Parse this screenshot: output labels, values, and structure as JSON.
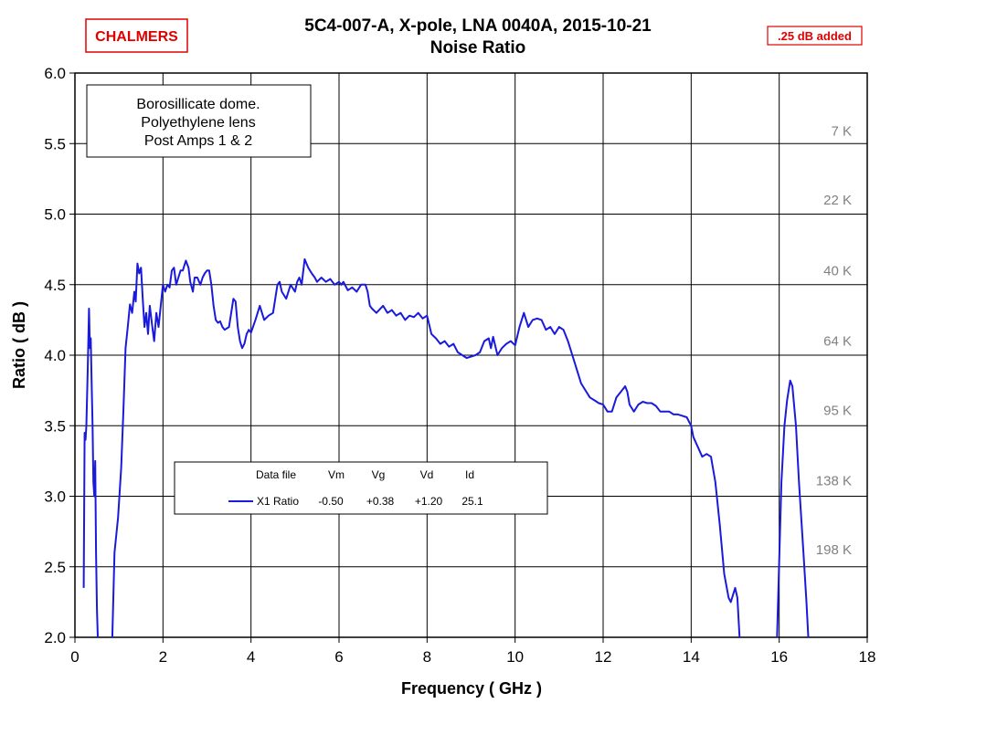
{
  "header": {
    "logo": "CHALMERS",
    "note": ".25 dB added"
  },
  "chart_data": {
    "type": "line",
    "title": "5C4-007-A,  X-pole,  LNA 0040A,  2015-10-21",
    "subtitle": "Noise Ratio",
    "xlabel": "Frequency ( GHz )",
    "ylabel": "Ratio  ( dB )",
    "xlim": [
      0,
      18
    ],
    "ylim": [
      2.0,
      6.0
    ],
    "x_ticks": [
      "0",
      "2",
      "4",
      "6",
      "8",
      "10",
      "12",
      "14",
      "16",
      "18"
    ],
    "y_ticks": [
      "2.0",
      "2.5",
      "3.0",
      "3.5",
      "4.0",
      "4.5",
      "5.0",
      "5.5",
      "6.0"
    ],
    "grid": true,
    "line_color": "#1a1adc",
    "annotation": [
      "Borosillicate dome.",
      "Polyethylene lens",
      "Post Amps 1 & 2"
    ],
    "temperature_labels": [
      {
        "label": "7 K",
        "y": 5.59
      },
      {
        "label": "22 K",
        "y": 5.1
      },
      {
        "label": "40 K",
        "y": 4.6
      },
      {
        "label": "64 K",
        "y": 4.1
      },
      {
        "label": "95 K",
        "y": 3.61
      },
      {
        "label": "138 K",
        "y": 3.11
      },
      {
        "label": "198 K",
        "y": 2.62
      }
    ],
    "legend": {
      "headers": [
        "Data file",
        "Vm",
        "Vg",
        "Vd",
        "Id"
      ],
      "row": [
        "X1 Ratio",
        "-0.50",
        "+0.38",
        "+1.20",
        "25.1"
      ]
    },
    "series": [
      {
        "name": "X1 Ratio",
        "segments": [
          [
            [
              0.2,
              2.35
            ],
            [
              0.22,
              3.45
            ],
            [
              0.24,
              3.4
            ],
            [
              0.26,
              3.5
            ],
            [
              0.29,
              3.9
            ],
            [
              0.32,
              4.33
            ],
            [
              0.34,
              4.05
            ],
            [
              0.36,
              4.12
            ],
            [
              0.38,
              3.8
            ],
            [
              0.4,
              3.5
            ],
            [
              0.42,
              3.1
            ],
            [
              0.44,
              3.0
            ],
            [
              0.46,
              3.25
            ],
            [
              0.48,
              2.6
            ],
            [
              0.5,
              2.2
            ],
            [
              0.52,
              2.0
            ]
          ],
          [
            [
              0.85,
              2.0
            ],
            [
              0.9,
              2.6
            ],
            [
              0.98,
              2.85
            ],
            [
              1.05,
              3.2
            ],
            [
              1.1,
              3.6
            ],
            [
              1.15,
              4.05
            ],
            [
              1.2,
              4.2
            ],
            [
              1.25,
              4.36
            ],
            [
              1.3,
              4.3
            ],
            [
              1.35,
              4.45
            ],
            [
              1.38,
              4.38
            ],
            [
              1.42,
              4.65
            ],
            [
              1.46,
              4.58
            ],
            [
              1.5,
              4.62
            ],
            [
              1.54,
              4.4
            ],
            [
              1.58,
              4.2
            ],
            [
              1.62,
              4.3
            ],
            [
              1.66,
              4.15
            ],
            [
              1.7,
              4.35
            ],
            [
              1.75,
              4.22
            ],
            [
              1.8,
              4.1
            ],
            [
              1.85,
              4.3
            ],
            [
              1.9,
              4.2
            ],
            [
              1.95,
              4.35
            ],
            [
              2.0,
              4.5
            ],
            [
              2.05,
              4.45
            ],
            [
              2.1,
              4.5
            ],
            [
              2.15,
              4.48
            ],
            [
              2.2,
              4.6
            ],
            [
              2.25,
              4.62
            ],
            [
              2.3,
              4.5
            ],
            [
              2.35,
              4.55
            ],
            [
              2.4,
              4.6
            ],
            [
              2.45,
              4.6
            ],
            [
              2.52,
              4.67
            ],
            [
              2.58,
              4.62
            ],
            [
              2.62,
              4.52
            ],
            [
              2.68,
              4.45
            ],
            [
              2.72,
              4.55
            ],
            [
              2.78,
              4.55
            ],
            [
              2.85,
              4.5
            ],
            [
              2.9,
              4.55
            ],
            [
              2.95,
              4.58
            ],
            [
              3.0,
              4.6
            ],
            [
              3.05,
              4.6
            ],
            [
              3.1,
              4.5
            ],
            [
              3.15,
              4.35
            ],
            [
              3.2,
              4.25
            ],
            [
              3.25,
              4.23
            ],
            [
              3.3,
              4.24
            ],
            [
              3.35,
              4.2
            ],
            [
              3.4,
              4.18
            ],
            [
              3.5,
              4.2
            ],
            [
              3.55,
              4.3
            ],
            [
              3.6,
              4.4
            ],
            [
              3.65,
              4.38
            ],
            [
              3.7,
              4.2
            ],
            [
              3.75,
              4.1
            ],
            [
              3.8,
              4.05
            ],
            [
              3.85,
              4.08
            ],
            [
              3.9,
              4.15
            ],
            [
              3.95,
              4.18
            ],
            [
              4.0,
              4.16
            ],
            [
              4.1,
              4.25
            ],
            [
              4.2,
              4.35
            ],
            [
              4.25,
              4.3
            ],
            [
              4.3,
              4.25
            ],
            [
              4.4,
              4.28
            ],
            [
              4.5,
              4.3
            ],
            [
              4.55,
              4.4
            ],
            [
              4.6,
              4.5
            ],
            [
              4.65,
              4.52
            ],
            [
              4.7,
              4.45
            ],
            [
              4.8,
              4.4
            ],
            [
              4.9,
              4.5
            ],
            [
              5.0,
              4.45
            ],
            [
              5.05,
              4.52
            ],
            [
              5.1,
              4.55
            ],
            [
              5.15,
              4.5
            ],
            [
              5.22,
              4.68
            ],
            [
              5.3,
              4.62
            ],
            [
              5.38,
              4.58
            ],
            [
              5.45,
              4.55
            ],
            [
              5.5,
              4.52
            ],
            [
              5.6,
              4.55
            ],
            [
              5.7,
              4.52
            ],
            [
              5.8,
              4.54
            ],
            [
              5.9,
              4.5
            ],
            [
              6.0,
              4.52
            ],
            [
              6.05,
              4.5
            ],
            [
              6.1,
              4.52
            ],
            [
              6.2,
              4.46
            ],
            [
              6.3,
              4.48
            ],
            [
              6.4,
              4.45
            ],
            [
              6.5,
              4.5
            ],
            [
              6.6,
              4.5
            ],
            [
              6.65,
              4.45
            ],
            [
              6.7,
              4.35
            ],
            [
              6.75,
              4.33
            ],
            [
              6.85,
              4.3
            ],
            [
              7.0,
              4.35
            ],
            [
              7.1,
              4.3
            ],
            [
              7.2,
              4.32
            ],
            [
              7.3,
              4.28
            ],
            [
              7.4,
              4.3
            ],
            [
              7.5,
              4.25
            ],
            [
              7.6,
              4.28
            ],
            [
              7.7,
              4.27
            ],
            [
              7.8,
              4.3
            ],
            [
              7.9,
              4.26
            ],
            [
              8.0,
              4.28
            ],
            [
              8.1,
              4.15
            ],
            [
              8.2,
              4.12
            ],
            [
              8.3,
              4.08
            ],
            [
              8.4,
              4.1
            ],
            [
              8.5,
              4.06
            ],
            [
              8.6,
              4.08
            ],
            [
              8.7,
              4.02
            ],
            [
              8.8,
              4.0
            ],
            [
              8.9,
              3.98
            ],
            [
              9.0,
              3.99
            ],
            [
              9.1,
              4.0
            ],
            [
              9.2,
              4.02
            ],
            [
              9.3,
              4.1
            ],
            [
              9.4,
              4.12
            ],
            [
              9.45,
              4.05
            ],
            [
              9.5,
              4.13
            ],
            [
              9.6,
              4.0
            ],
            [
              9.7,
              4.05
            ],
            [
              9.8,
              4.08
            ],
            [
              9.9,
              4.1
            ],
            [
              10.0,
              4.07
            ],
            [
              10.1,
              4.2
            ],
            [
              10.2,
              4.3
            ],
            [
              10.3,
              4.2
            ],
            [
              10.4,
              4.25
            ],
            [
              10.5,
              4.26
            ],
            [
              10.6,
              4.25
            ],
            [
              10.7,
              4.18
            ],
            [
              10.8,
              4.2
            ],
            [
              10.9,
              4.15
            ],
            [
              11.0,
              4.2
            ],
            [
              11.1,
              4.18
            ],
            [
              11.2,
              4.1
            ],
            [
              11.3,
              4.0
            ],
            [
              11.4,
              3.9
            ],
            [
              11.5,
              3.8
            ],
            [
              11.6,
              3.75
            ],
            [
              11.7,
              3.7
            ],
            [
              11.8,
              3.68
            ],
            [
              11.9,
              3.66
            ],
            [
              12.0,
              3.65
            ],
            [
              12.1,
              3.6
            ],
            [
              12.2,
              3.6
            ],
            [
              12.3,
              3.7
            ],
            [
              12.4,
              3.74
            ],
            [
              12.5,
              3.78
            ],
            [
              12.55,
              3.74
            ],
            [
              12.6,
              3.65
            ],
            [
              12.7,
              3.6
            ],
            [
              12.8,
              3.65
            ],
            [
              12.9,
              3.67
            ],
            [
              13.0,
              3.66
            ],
            [
              13.1,
              3.66
            ],
            [
              13.2,
              3.64
            ],
            [
              13.3,
              3.6
            ],
            [
              13.4,
              3.6
            ],
            [
              13.5,
              3.6
            ],
            [
              13.6,
              3.58
            ],
            [
              13.7,
              3.58
            ],
            [
              13.8,
              3.57
            ],
            [
              13.9,
              3.56
            ],
            [
              14.0,
              3.5
            ],
            [
              14.05,
              3.42
            ],
            [
              14.15,
              3.35
            ],
            [
              14.25,
              3.28
            ],
            [
              14.35,
              3.3
            ],
            [
              14.45,
              3.28
            ],
            [
              14.55,
              3.1
            ],
            [
              14.65,
              2.8
            ],
            [
              14.75,
              2.45
            ],
            [
              14.85,
              2.28
            ],
            [
              14.9,
              2.25
            ],
            [
              14.95,
              2.3
            ],
            [
              15.0,
              2.35
            ],
            [
              15.05,
              2.28
            ],
            [
              15.1,
              2.0
            ]
          ],
          [
            [
              15.95,
              2.0
            ],
            [
              16.0,
              2.55
            ],
            [
              16.05,
              3.1
            ],
            [
              16.12,
              3.5
            ],
            [
              16.18,
              3.68
            ],
            [
              16.25,
              3.82
            ],
            [
              16.3,
              3.78
            ],
            [
              16.38,
              3.5
            ],
            [
              16.45,
              3.1
            ],
            [
              16.55,
              2.6
            ],
            [
              16.62,
              2.25
            ],
            [
              16.66,
              2.0
            ]
          ]
        ]
      }
    ]
  }
}
